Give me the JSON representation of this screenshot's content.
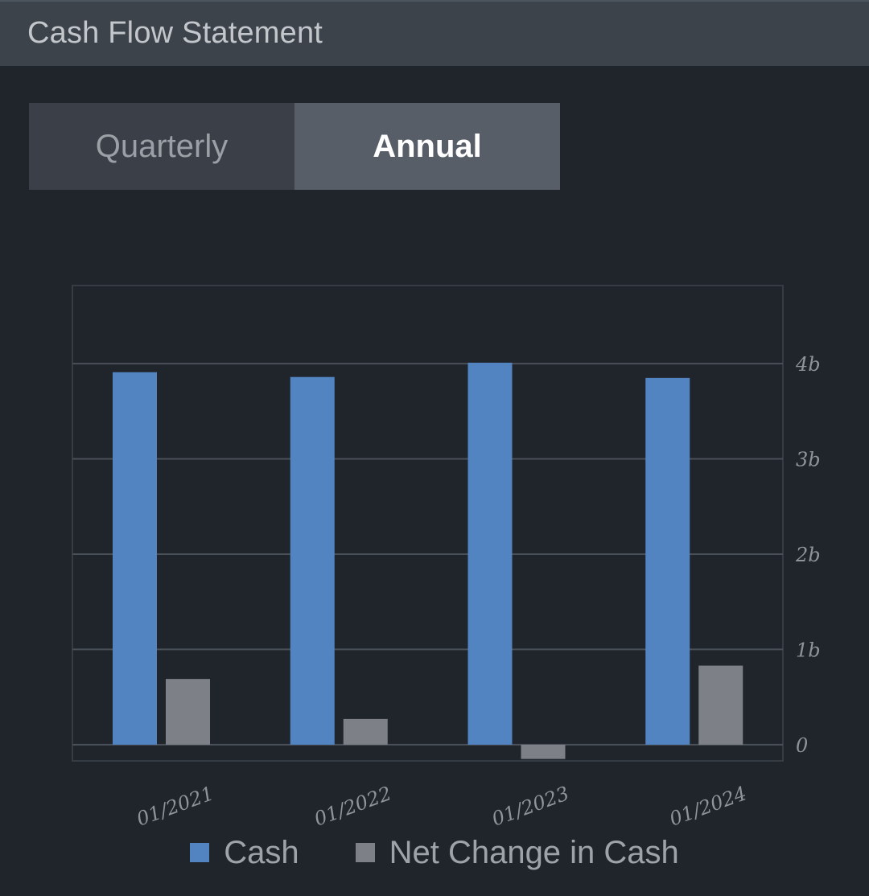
{
  "header": {
    "title": "Cash Flow Statement"
  },
  "toggle": {
    "quarterly_label": "Quarterly",
    "annual_label": "Annual",
    "selected": "Annual"
  },
  "colors": {
    "cash": "#5284c2",
    "net_change": "#7d8187",
    "grid": "#4a5058",
    "axis": "#8e949a"
  },
  "chart_data": {
    "type": "bar",
    "categories": [
      "01/2021",
      "01/2022",
      "01/2023",
      "01/2024"
    ],
    "series": [
      {
        "name": "Cash",
        "values": [
          3.91,
          3.86,
          4.01,
          3.85
        ]
      },
      {
        "name": "Net Change in Cash",
        "values": [
          0.69,
          0.27,
          -0.15,
          0.83
        ]
      }
    ],
    "y_ticks": [
      0,
      1,
      2,
      3,
      4
    ],
    "y_tick_labels": [
      "0",
      "1b",
      "2b",
      "3b",
      "4b"
    ],
    "ylim": [
      -0.17,
      4.82
    ],
    "y_unit": "billions",
    "grid": true,
    "legend": "bottom"
  }
}
